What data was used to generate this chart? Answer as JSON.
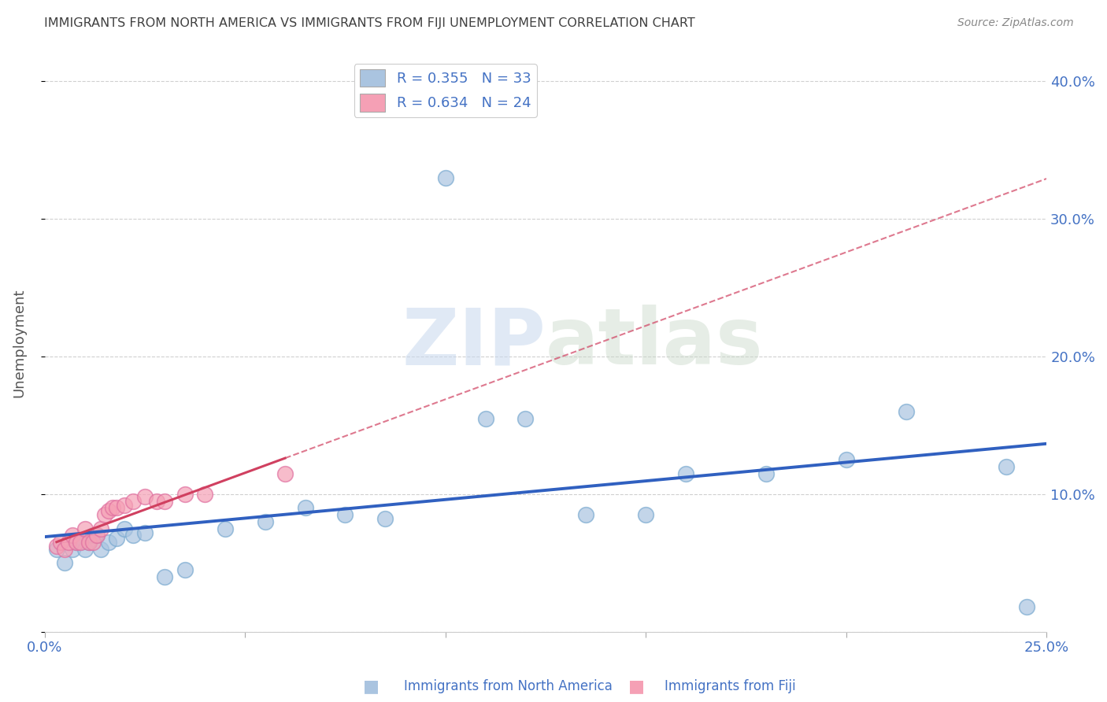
{
  "title": "IMMIGRANTS FROM NORTH AMERICA VS IMMIGRANTS FROM FIJI UNEMPLOYMENT CORRELATION CHART",
  "source": "Source: ZipAtlas.com",
  "ylabel": "Unemployment",
  "watermark_zip": "ZIP",
  "watermark_atlas": "atlas",
  "series1_label": "Immigrants from North America",
  "series2_label": "Immigrants from Fiji",
  "series1_R": 0.355,
  "series1_N": 33,
  "series2_R": 0.634,
  "series2_N": 24,
  "series1_color": "#aac4e0",
  "series2_color": "#f5a0b5",
  "series1_edge": "#7aaad0",
  "series2_edge": "#e070a0",
  "trend1_color": "#3060c0",
  "trend2_color": "#d04060",
  "xmin": 0.0,
  "xmax": 0.25,
  "ymin": 0.0,
  "ymax": 0.42,
  "xticks": [
    0.0,
    0.05,
    0.1,
    0.15,
    0.2,
    0.25
  ],
  "xtick_labels": [
    "0.0%",
    "",
    "",
    "",
    "",
    "25.0%"
  ],
  "yticks": [
    0.0,
    0.1,
    0.2,
    0.3,
    0.4
  ],
  "ytick_labels_right": [
    "",
    "10.0%",
    "20.0%",
    "30.0%",
    "40.0%"
  ],
  "series1_x": [
    0.003,
    0.005,
    0.007,
    0.008,
    0.009,
    0.01,
    0.011,
    0.012,
    0.013,
    0.014,
    0.016,
    0.018,
    0.02,
    0.022,
    0.025,
    0.03,
    0.035,
    0.045,
    0.055,
    0.065,
    0.075,
    0.085,
    0.1,
    0.11,
    0.12,
    0.135,
    0.15,
    0.16,
    0.18,
    0.2,
    0.215,
    0.24,
    0.245
  ],
  "series1_y": [
    0.06,
    0.05,
    0.06,
    0.065,
    0.065,
    0.06,
    0.065,
    0.07,
    0.07,
    0.06,
    0.065,
    0.068,
    0.075,
    0.07,
    0.072,
    0.04,
    0.045,
    0.075,
    0.08,
    0.09,
    0.085,
    0.082,
    0.33,
    0.155,
    0.155,
    0.085,
    0.085,
    0.115,
    0.115,
    0.125,
    0.16,
    0.12,
    0.018
  ],
  "series2_x": [
    0.003,
    0.004,
    0.005,
    0.006,
    0.007,
    0.008,
    0.009,
    0.01,
    0.011,
    0.012,
    0.013,
    0.014,
    0.015,
    0.016,
    0.017,
    0.018,
    0.02,
    0.022,
    0.025,
    0.028,
    0.03,
    0.035,
    0.04,
    0.06
  ],
  "series2_y": [
    0.062,
    0.065,
    0.06,
    0.065,
    0.07,
    0.065,
    0.065,
    0.075,
    0.065,
    0.065,
    0.07,
    0.075,
    0.085,
    0.088,
    0.09,
    0.09,
    0.092,
    0.095,
    0.098,
    0.095,
    0.095,
    0.1,
    0.1,
    0.115
  ],
  "axis_label_color": "#4472c4",
  "title_color": "#404040",
  "grid_color": "#d0d0d0"
}
